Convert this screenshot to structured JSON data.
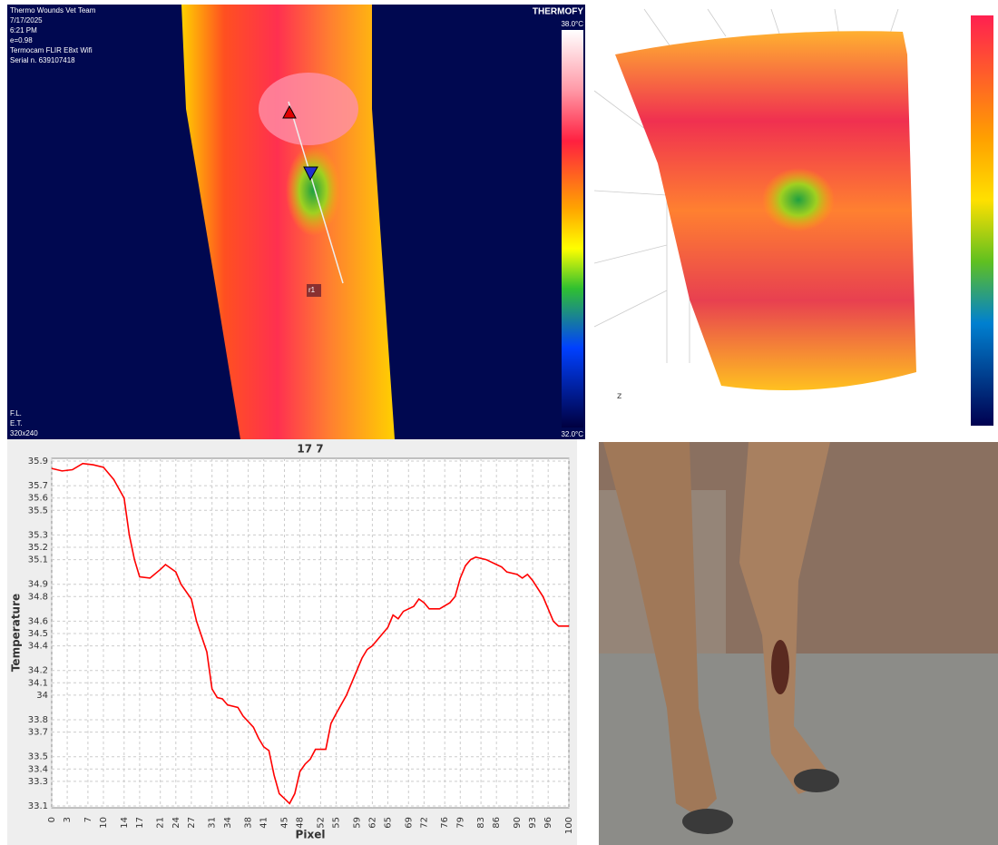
{
  "thermal_image": {
    "team": "Thermo Wounds Vet Team",
    "date": "7/17/2025",
    "time": "6:21 PM",
    "emissivity": "e=0.98",
    "camera": "Termocam FLIR E8xt Wifi",
    "serial": "Serial n. 639107418",
    "fl": "F.L.",
    "et": "E.T.",
    "resolution": "320x240",
    "brand": "THERMOFY",
    "scale_max": "38.0°C",
    "scale_min": "32.0°C",
    "roi": "r1"
  },
  "surface_plot": {
    "axis_label": "z"
  },
  "chart_data": {
    "type": "line",
    "title": "17 7",
    "x_label": "Pixel",
    "y_label": "Temperature",
    "x": [
      0,
      2,
      4,
      6,
      8,
      10,
      12,
      14,
      15,
      16,
      17,
      19,
      21,
      22,
      24,
      25,
      27,
      28,
      30,
      31,
      32,
      33,
      34,
      36,
      37,
      39,
      40,
      41,
      42,
      43,
      44,
      45,
      46,
      47,
      48,
      49,
      50,
      51,
      53,
      54,
      55,
      57,
      58,
      60,
      61,
      62,
      64,
      65,
      66,
      67,
      68,
      70,
      71,
      72,
      73,
      75,
      77,
      78,
      79,
      80,
      81,
      82,
      84,
      86,
      87,
      88,
      90,
      91,
      92,
      93,
      95,
      96,
      97,
      98,
      100
    ],
    "series": [
      {
        "name": "17 7",
        "color": "#ff0000",
        "values": [
          35.84,
          35.82,
          35.83,
          35.88,
          35.87,
          35.85,
          35.75,
          35.6,
          35.3,
          35.1,
          34.96,
          34.95,
          35.02,
          35.06,
          35.0,
          34.9,
          34.78,
          34.6,
          34.35,
          34.05,
          33.98,
          33.97,
          33.92,
          33.9,
          33.83,
          33.74,
          33.65,
          33.58,
          33.55,
          33.35,
          33.2,
          33.16,
          33.12,
          33.2,
          33.38,
          33.44,
          33.48,
          33.56,
          33.56,
          33.77,
          33.85,
          34.0,
          34.1,
          34.3,
          34.37,
          34.4,
          34.5,
          34.55,
          34.65,
          34.62,
          34.68,
          34.72,
          34.78,
          34.75,
          34.7,
          34.7,
          34.75,
          34.8,
          34.95,
          35.05,
          35.1,
          35.12,
          35.1,
          35.06,
          35.04,
          35.0,
          34.98,
          34.95,
          34.98,
          34.93,
          34.8,
          34.7,
          34.6,
          34.56,
          34.56
        ]
      }
    ],
    "xlim": [
      0,
      100
    ],
    "xticks": [
      0,
      3,
      7,
      10,
      14,
      17,
      21,
      24,
      27,
      31,
      34,
      38,
      41,
      45,
      48,
      52,
      55,
      59,
      62,
      65,
      69,
      72,
      76,
      79,
      83,
      86,
      90,
      93,
      96,
      100
    ],
    "ylim": [
      33.1,
      35.9
    ],
    "yticks": [
      33.1,
      33.3,
      33.4,
      33.5,
      33.7,
      33.8,
      34.0,
      34.1,
      34.2,
      34.4,
      34.5,
      34.6,
      34.8,
      34.9,
      35.1,
      35.2,
      35.3,
      35.5,
      35.6,
      35.7,
      35.9
    ],
    "grid": true
  }
}
